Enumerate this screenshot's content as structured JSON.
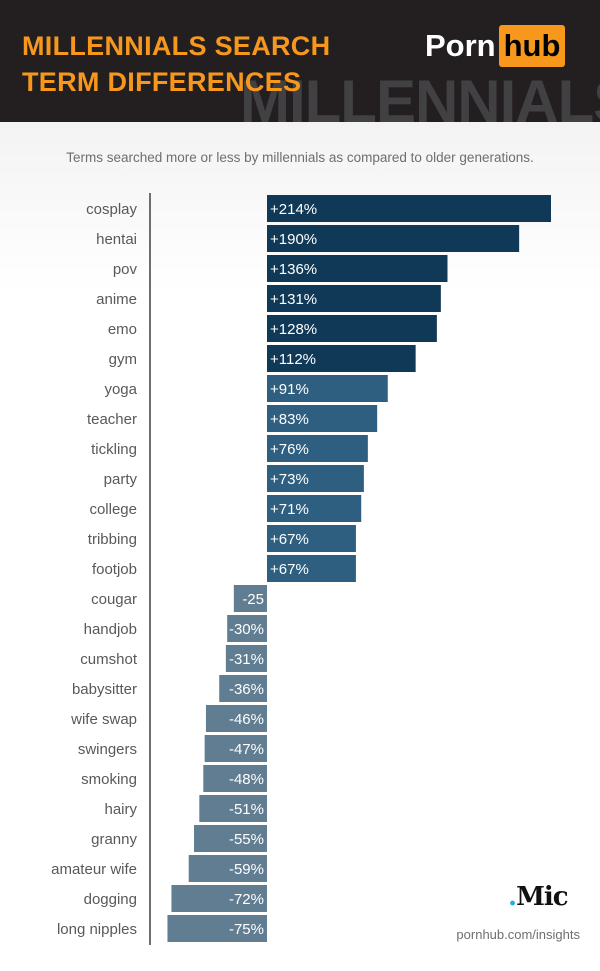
{
  "header": {
    "title_line1": "MILLENNIALS SEARCH",
    "title_line2": "TERM DIFFERENCES",
    "watermark": "MILLENNIALS",
    "logo_part1": "Porn",
    "logo_part2": "hub"
  },
  "footer": {
    "mic_logo": "Mic",
    "source": "pornhub.com/insights"
  },
  "colors": {
    "strong_positive": "#0f3957",
    "positive": "#2e5f80",
    "negative": "#607d92",
    "accent": "#f7981d"
  },
  "chart_data": {
    "type": "bar",
    "orientation": "horizontal",
    "title": "Terms searched more or less by millennials as compared to older generations.",
    "unit": "%",
    "categories": [
      "cosplay",
      "hentai",
      "pov",
      "anime",
      "emo",
      "gym",
      "yoga",
      "teacher",
      "tickling",
      "party",
      "college",
      "tribbing",
      "footjob",
      "cougar",
      "handjob",
      "cumshot",
      "babysitter",
      "wife swap",
      "swingers",
      "smoking",
      "hairy",
      "granny",
      "amateur wife",
      "dogging",
      "long nipples"
    ],
    "values": [
      214,
      190,
      136,
      131,
      128,
      112,
      91,
      83,
      76,
      73,
      71,
      67,
      67,
      -25,
      -30,
      -31,
      -36,
      -46,
      -47,
      -48,
      -51,
      -55,
      -59,
      -72,
      -75
    ],
    "data_labels": [
      "+214%",
      "+190%",
      "+136%",
      "+131%",
      "+128%",
      "+112%",
      "+91%",
      "+83%",
      "+76%",
      "+73%",
      "+71%",
      "+67%",
      "+67%",
      "-25",
      "-30%",
      "-31%",
      "-36%",
      "-46%",
      "-47%",
      "-48%",
      "-51%",
      "-55%",
      "-59%",
      "-72%",
      "-75%"
    ],
    "xlim": [
      -75,
      214
    ],
    "grid": false,
    "legend": "none"
  }
}
